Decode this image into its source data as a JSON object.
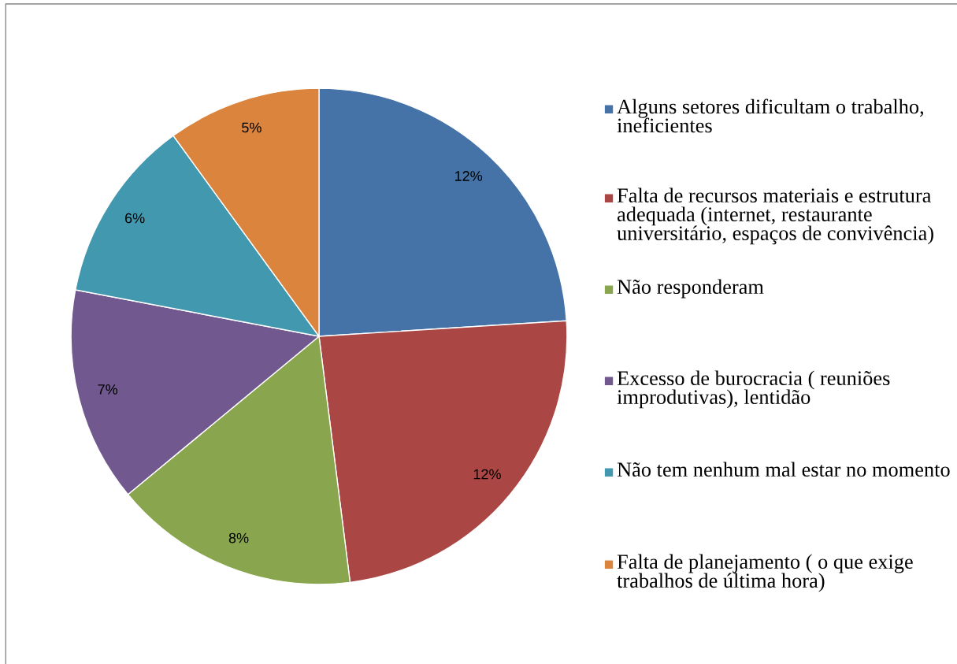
{
  "chart_data": {
    "type": "pie",
    "categories": [
      "Alguns setores dificultam o trabalho, ineficientes",
      "Falta de recursos materiais e estrutura adequada (internet, restaurante universitário, espaços de convivência)",
      "Não responderam",
      "Excesso de burocracia ( reuniões improdutivas), lentidão",
      "Não tem nenhum mal estar no momento",
      "Falta de planejamento ( o que exige trabalhos de última hora)"
    ],
    "values": [
      12,
      12,
      8,
      7,
      6,
      5
    ],
    "value_labels": [
      "12%",
      "12%",
      "8%",
      "7%",
      "6%",
      "5%"
    ],
    "colors": [
      "#4572a7",
      "#aa4643",
      "#89a54e",
      "#71588f",
      "#4198af",
      "#db843d"
    ],
    "legend": "right"
  }
}
